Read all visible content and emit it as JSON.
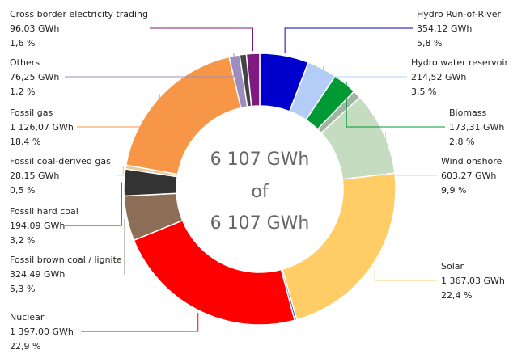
{
  "chart_data": {
    "type": "donut",
    "center_text": [
      "6 107 GWh",
      "of",
      "6 107 GWh"
    ],
    "categories": [
      "Hydro Run-of-River",
      "Hydro water reservoir",
      "Biomass",
      null,
      "Wind onshore",
      "Solar",
      null,
      "Nuclear",
      "Fossil brown coal / lignite",
      "Fossil hard coal",
      "Fossil coal-derived gas",
      "Fossil gas",
      "Others",
      null,
      "Cross border electricity trading"
    ],
    "values": [
      354.12,
      214.52,
      173.31,
      60,
      603.27,
      1367.03,
      15,
      1397.0,
      324.49,
      194.09,
      28.15,
      1126.07,
      76.25,
      48,
      96.03
    ],
    "value_labels": [
      "354,12 GWh",
      "214,52 GWh",
      "173,31 GWh",
      null,
      "603,27 GWh",
      "1 367,03 GWh",
      null,
      "1 397,00 GWh",
      "324,49 GWh",
      "194,09 GWh",
      "28,15 GWh",
      "1 126,07 GWh",
      "76,25 GWh",
      null,
      "96,03 GWh"
    ],
    "share_labels": [
      "5,8 %",
      "3,5 %",
      "2,8 %",
      null,
      "9,9 %",
      "22,4 %",
      null,
      "22,9 %",
      "5,3 %",
      "3,2 %",
      "0,5 %",
      "18,4 %",
      "1,2 %",
      null,
      "1,6 %"
    ],
    "colors": [
      "#0000cc",
      "#b3cdf7",
      "#009933",
      "#9fb59f",
      "#c5dcc0",
      "#ffcc66",
      "#333399",
      "#ff0000",
      "#8b6e55",
      "#333333",
      "#e8c9a0",
      "#f79646",
      "#9c8dc0",
      "#444444",
      "#7f1a7f"
    ]
  }
}
